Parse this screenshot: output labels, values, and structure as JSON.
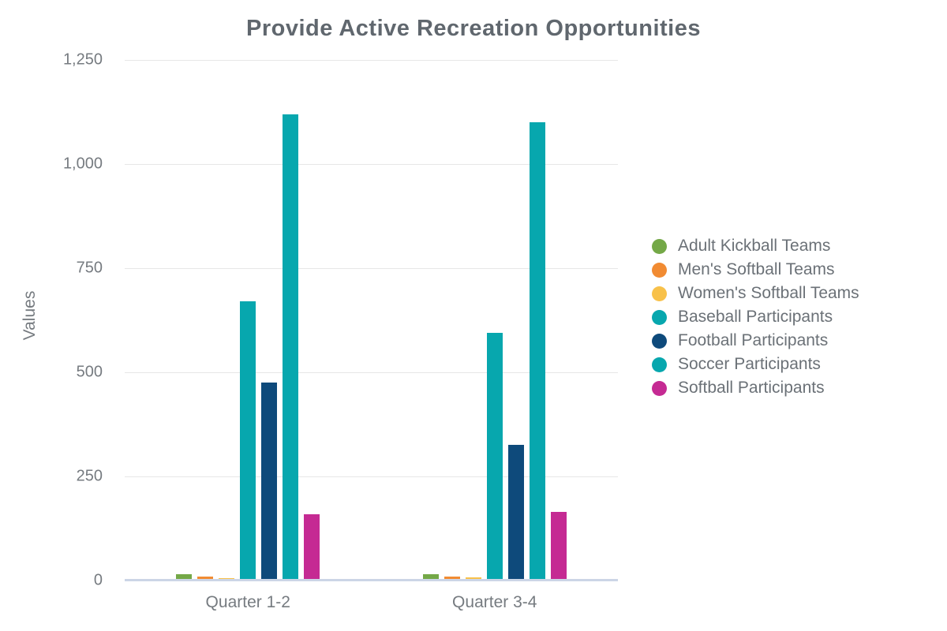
{
  "title": "Provide Active Recreation Opportunities",
  "chart_data": {
    "type": "bar",
    "title": "Provide Active Recreation Opportunities",
    "xlabel": "",
    "ylabel": "Values",
    "categories": [
      "Quarter 1-2",
      "Quarter 3-4"
    ],
    "series": [
      {
        "name": "Adult Kickball Teams",
        "color": "#74a847",
        "values": [
          16,
          16
        ]
      },
      {
        "name": "Men's Softball Teams",
        "color": "#f18b32",
        "values": [
          10,
          10
        ]
      },
      {
        "name": "Women's Softball Teams",
        "color": "#f8c14a",
        "values": [
          6,
          8
        ]
      },
      {
        "name": "Baseball Participants",
        "color": "#07a7ae",
        "values": [
          670,
          595
        ]
      },
      {
        "name": "Football Participants",
        "color": "#0e4a7b",
        "values": [
          475,
          325
        ]
      },
      {
        "name": "Soccer Participants",
        "color": "#07a7ae",
        "values": [
          1120,
          1100
        ]
      },
      {
        "name": "Softball Participants",
        "color": "#c52a93",
        "values": [
          160,
          165
        ]
      }
    ],
    "ylim": [
      0,
      1250
    ],
    "yticks": [
      0,
      250,
      500,
      750,
      1000,
      1250
    ],
    "ytick_labels": [
      "0",
      "250",
      "500",
      "750",
      "1,000",
      "1,250"
    ],
    "grid": true,
    "legend_position": "right"
  },
  "colors": {
    "title_text": "#60676e",
    "axis_text": "#767b80",
    "legend_text": "#6b7177",
    "gridline": "#e7e7e7",
    "baseline": "#ccd5e6",
    "background": "#ffffff"
  }
}
